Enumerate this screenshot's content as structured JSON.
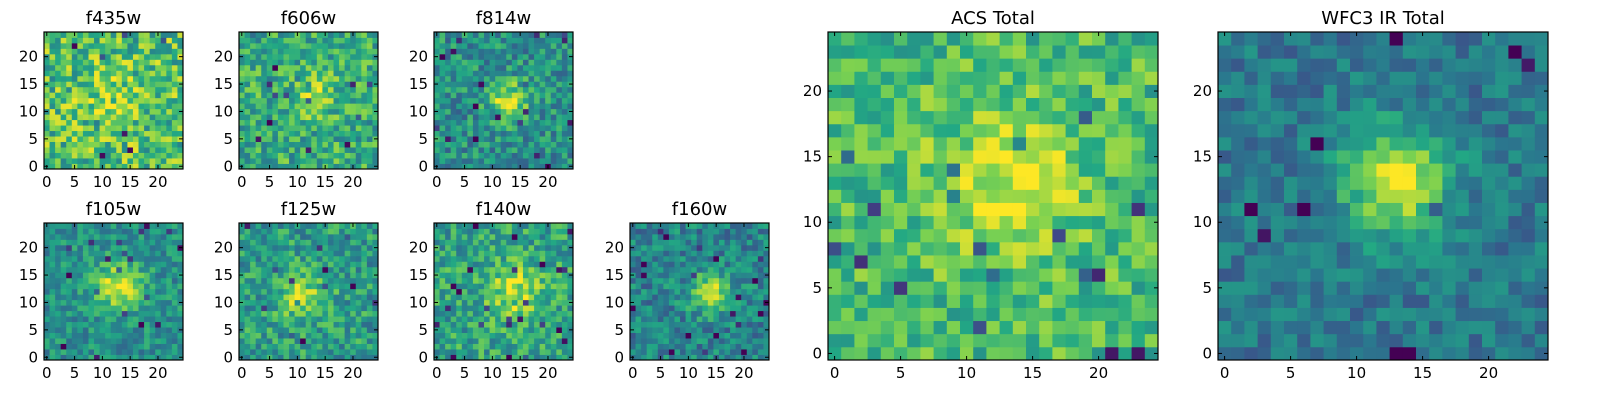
{
  "figure": {
    "colormap": "viridis",
    "colormap_stops": [
      "#440154",
      "#414487",
      "#2a788e",
      "#22a884",
      "#7ad151",
      "#fde725"
    ]
  },
  "chart_data": [
    {
      "id": "f435w",
      "type": "heatmap",
      "title": "f435w",
      "grid_size": 25,
      "xlim": [
        0,
        24
      ],
      "ylim": [
        0,
        24
      ],
      "x_ticks": [
        0,
        5,
        10,
        15,
        20
      ],
      "y_ticks": [
        0,
        5,
        10,
        15,
        20
      ],
      "noise": 0.26,
      "peak": 0.12,
      "center": [
        12,
        12
      ],
      "sigma": 4,
      "baseline": 0.7,
      "seed": 11
    },
    {
      "id": "f606w",
      "type": "heatmap",
      "title": "f606w",
      "grid_size": 25,
      "xlim": [
        0,
        24
      ],
      "ylim": [
        0,
        24
      ],
      "x_ticks": [
        0,
        5,
        10,
        15,
        20
      ],
      "y_ticks": [
        0,
        5,
        10,
        15,
        20
      ],
      "noise": 0.22,
      "peak": 0.2,
      "center": [
        13,
        13
      ],
      "sigma": 3,
      "baseline": 0.62,
      "seed": 23
    },
    {
      "id": "f814w",
      "type": "heatmap",
      "title": "f814w",
      "grid_size": 25,
      "xlim": [
        0,
        24
      ],
      "ylim": [
        0,
        24
      ],
      "x_ticks": [
        0,
        5,
        10,
        15,
        20
      ],
      "y_ticks": [
        0,
        5,
        10,
        15,
        20
      ],
      "noise": 0.2,
      "peak": 0.42,
      "center": [
        13,
        12
      ],
      "sigma": 2.5,
      "baseline": 0.5,
      "seed": 37
    },
    {
      "id": "f105w",
      "type": "heatmap",
      "title": "f105w",
      "grid_size": 25,
      "xlim": [
        0,
        24
      ],
      "ylim": [
        0,
        24
      ],
      "x_ticks": [
        0,
        5,
        10,
        15,
        20
      ],
      "y_ticks": [
        0,
        5,
        10,
        15,
        20
      ],
      "noise": 0.16,
      "peak": 0.45,
      "center": [
        13,
        13
      ],
      "sigma": 3,
      "baseline": 0.5,
      "seed": 41
    },
    {
      "id": "f125w",
      "type": "heatmap",
      "title": "f125w",
      "grid_size": 25,
      "xlim": [
        0,
        24
      ],
      "ylim": [
        0,
        24
      ],
      "x_ticks": [
        0,
        5,
        10,
        15,
        20
      ],
      "y_ticks": [
        0,
        5,
        10,
        15,
        20
      ],
      "noise": 0.2,
      "peak": 0.32,
      "center": [
        11,
        11
      ],
      "sigma": 3,
      "baseline": 0.55,
      "seed": 53
    },
    {
      "id": "f140w",
      "type": "heatmap",
      "title": "f140w",
      "grid_size": 25,
      "xlim": [
        0,
        24
      ],
      "ylim": [
        0,
        24
      ],
      "x_ticks": [
        0,
        5,
        10,
        15,
        20
      ],
      "y_ticks": [
        0,
        5,
        10,
        15,
        20
      ],
      "noise": 0.2,
      "peak": 0.32,
      "center": [
        14,
        12
      ],
      "sigma": 3.5,
      "baseline": 0.58,
      "seed": 67
    },
    {
      "id": "f160w",
      "type": "heatmap",
      "title": "f160w",
      "grid_size": 25,
      "xlim": [
        0,
        24
      ],
      "ylim": [
        0,
        24
      ],
      "x_ticks": [
        0,
        5,
        10,
        15,
        20
      ],
      "y_ticks": [
        0,
        5,
        10,
        15,
        20
      ],
      "noise": 0.18,
      "peak": 0.42,
      "center": [
        14,
        12
      ],
      "sigma": 2.5,
      "baseline": 0.45,
      "seed": 71
    },
    {
      "id": "acs_total",
      "type": "heatmap",
      "title": "ACS Total",
      "grid_size": 25,
      "xlim": [
        0,
        24
      ],
      "ylim": [
        0,
        24
      ],
      "x_ticks": [
        0,
        5,
        10,
        15,
        20
      ],
      "y_ticks": [
        0,
        5,
        10,
        15,
        20
      ],
      "noise": 0.18,
      "peak": 0.25,
      "center": [
        13,
        13
      ],
      "sigma": 4,
      "baseline": 0.68,
      "seed": 83
    },
    {
      "id": "wfc3_ir_total",
      "type": "heatmap",
      "title": "WFC3 IR Total",
      "grid_size": 25,
      "xlim": [
        0,
        24
      ],
      "ylim": [
        0,
        24
      ],
      "x_ticks": [
        0,
        5,
        10,
        15,
        20
      ],
      "y_ticks": [
        0,
        5,
        10,
        15,
        20
      ],
      "noise": 0.13,
      "peak": 0.55,
      "center": [
        13,
        13
      ],
      "sigma": 2.8,
      "baseline": 0.4,
      "seed": 97
    }
  ]
}
